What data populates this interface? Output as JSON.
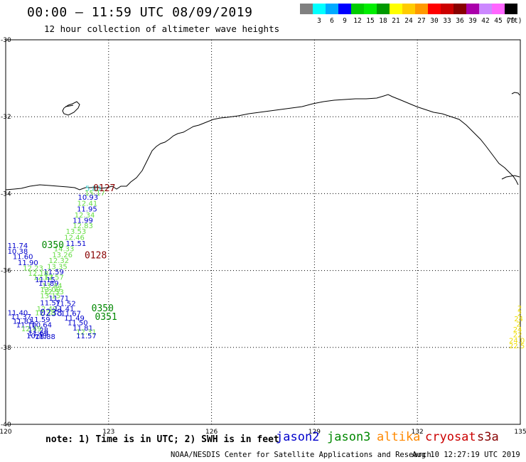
{
  "header": {
    "title": "00:00 — 11:59 UTC 08/09/2019",
    "subtitle": "12 hour collection of altimeter wave heights"
  },
  "legend": {
    "unit": "(ft)",
    "swatches": [
      {
        "color": "#808080",
        "label": ""
      },
      {
        "color": "#00ffff",
        "label": "3"
      },
      {
        "color": "#00aaff",
        "label": "6"
      },
      {
        "color": "#0000ff",
        "label": "9"
      },
      {
        "color": "#00cc00",
        "label": "12"
      },
      {
        "color": "#00ee00",
        "label": "15"
      },
      {
        "color": "#009900",
        "label": "18"
      },
      {
        "color": "#ffff00",
        "label": "21"
      },
      {
        "color": "#ffcc00",
        "label": "24"
      },
      {
        "color": "#ff9900",
        "label": "27"
      },
      {
        "color": "#ff0000",
        "label": "30"
      },
      {
        "color": "#cc0000",
        "label": "33"
      },
      {
        "color": "#880000",
        "label": "36"
      },
      {
        "color": "#aa00aa",
        "label": "39"
      },
      {
        "color": "#cc88ff",
        "label": "42"
      },
      {
        "color": "#ff66ff",
        "label": "45"
      },
      {
        "color": "#000000",
        "label": "70"
      }
    ]
  },
  "map": {
    "lon_ticks": [
      "120",
      "123",
      "126",
      "129",
      "132",
      "135"
    ],
    "lat_ticks": [
      "-30",
      "-32",
      "-34",
      "-36",
      "-38",
      "-40"
    ],
    "lon_range": [
      120,
      135
    ],
    "lat_range": [
      -30,
      -40
    ],
    "coast_color": "#000000",
    "grid": true
  },
  "observations": [
    {
      "lon": 122.55,
      "lat": -33.93,
      "text": "5.80",
      "color": "#33cccc"
    },
    {
      "lon": 122.6,
      "lat": -34.05,
      "text": "15.17",
      "color": "#66dd44"
    },
    {
      "lon": 122.4,
      "lat": -34.16,
      "text": "10.93",
      "color": "#0000cc"
    },
    {
      "lon": 122.38,
      "lat": -34.32,
      "text": "12.41",
      "color": "#66dd44"
    },
    {
      "lon": 122.37,
      "lat": -34.46,
      "text": "11.95",
      "color": "#0000cc"
    },
    {
      "lon": 122.3,
      "lat": -34.62,
      "text": "12.34",
      "color": "#66dd44"
    },
    {
      "lon": 122.25,
      "lat": -34.76,
      "text": "11.99",
      "color": "#0000cc"
    },
    {
      "lon": 122.25,
      "lat": -34.9,
      "text": "12.83",
      "color": "#66dd44"
    },
    {
      "lon": 122.05,
      "lat": -35.05,
      "text": "13.53",
      "color": "#66dd44"
    },
    {
      "lon": 122.0,
      "lat": -35.2,
      "text": "12.46",
      "color": "#66dd44"
    },
    {
      "lon": 122.05,
      "lat": -35.36,
      "text": "11.51",
      "color": "#0000cc"
    },
    {
      "lon": 121.7,
      "lat": -35.5,
      "text": "14.33",
      "color": "#66dd44"
    },
    {
      "lon": 121.65,
      "lat": -35.66,
      "text": "13.26",
      "color": "#66dd44"
    },
    {
      "lon": 121.55,
      "lat": -35.8,
      "text": "12.32",
      "color": "#66dd44"
    },
    {
      "lon": 121.5,
      "lat": -35.96,
      "text": "13.35",
      "color": "#66dd44"
    },
    {
      "lon": 121.4,
      "lat": -36.1,
      "text": "11.59",
      "color": "#0000cc"
    },
    {
      "lon": 120.35,
      "lat": -35.42,
      "text": "11.74",
      "color": "#0000cc"
    },
    {
      "lon": 120.35,
      "lat": -35.56,
      "text": "10.38",
      "color": "#0000cc"
    },
    {
      "lon": 120.5,
      "lat": -35.7,
      "text": "11.60",
      "color": "#0000cc"
    },
    {
      "lon": 120.65,
      "lat": -35.86,
      "text": "11.90",
      "color": "#0000cc"
    },
    {
      "lon": 120.8,
      "lat": -36.0,
      "text": "12.23",
      "color": "#66dd44"
    },
    {
      "lon": 120.95,
      "lat": -36.14,
      "text": "12.18",
      "color": "#66dd44"
    },
    {
      "lon": 121.1,
      "lat": -36.24,
      "text": "12.17",
      "color": "#66dd44"
    },
    {
      "lon": 121.4,
      "lat": -36.24,
      "text": "12.57",
      "color": "#66dd44"
    },
    {
      "lon": 121.15,
      "lat": -36.3,
      "text": "11.15",
      "color": "#0000cc"
    },
    {
      "lon": 121.25,
      "lat": -36.4,
      "text": "11.89",
      "color": "#0000cc"
    },
    {
      "lon": 121.35,
      "lat": -36.46,
      "text": "13.44",
      "color": "#66dd44"
    },
    {
      "lon": 121.3,
      "lat": -36.56,
      "text": "13.09",
      "color": "#66dd44"
    },
    {
      "lon": 121.4,
      "lat": -36.62,
      "text": "12.53",
      "color": "#66dd44"
    },
    {
      "lon": 121.3,
      "lat": -36.72,
      "text": "13.15",
      "color": "#66dd44"
    },
    {
      "lon": 121.55,
      "lat": -36.78,
      "text": "11.71",
      "color": "#0000cc"
    },
    {
      "lon": 121.3,
      "lat": -36.9,
      "text": "11.57",
      "color": "#0000cc"
    },
    {
      "lon": 121.75,
      "lat": -36.92,
      "text": "11.52",
      "color": "#0000cc"
    },
    {
      "lon": 121.2,
      "lat": -37.06,
      "text": "12.49",
      "color": "#66dd44"
    },
    {
      "lon": 121.7,
      "lat": -37.06,
      "text": "11.41",
      "color": "#0000cc"
    },
    {
      "lon": 121.15,
      "lat": -37.16,
      "text": "12.38",
      "color": "#66dd44"
    },
    {
      "lon": 121.9,
      "lat": -37.18,
      "text": "11.67",
      "color": "#0000cc"
    },
    {
      "lon": 120.35,
      "lat": -37.16,
      "text": "11.40",
      "color": "#0000cc"
    },
    {
      "lon": 120.45,
      "lat": -37.26,
      "text": "11.37",
      "color": "#0000cc"
    },
    {
      "lon": 121.0,
      "lat": -37.34,
      "text": "11.59",
      "color": "#0000cc"
    },
    {
      "lon": 122.0,
      "lat": -37.3,
      "text": "11.49",
      "color": "#0000cc"
    },
    {
      "lon": 120.5,
      "lat": -37.38,
      "text": "11.81",
      "color": "#0000cc"
    },
    {
      "lon": 122.1,
      "lat": -37.42,
      "text": "11.50",
      "color": "#0000cc"
    },
    {
      "lon": 120.6,
      "lat": -37.48,
      "text": "11.10",
      "color": "#0000cc"
    },
    {
      "lon": 121.05,
      "lat": -37.48,
      "text": "10.64",
      "color": "#0000cc"
    },
    {
      "lon": 122.25,
      "lat": -37.56,
      "text": "11.81",
      "color": "#0000cc"
    },
    {
      "lon": 120.75,
      "lat": -37.58,
      "text": "12.49",
      "color": "#66dd44"
    },
    {
      "lon": 120.95,
      "lat": -37.62,
      "text": "11.28",
      "color": "#0000cc"
    },
    {
      "lon": 122.35,
      "lat": -37.66,
      "text": "12.31",
      "color": "#66dd44"
    },
    {
      "lon": 120.95,
      "lat": -37.7,
      "text": "11.69",
      "color": "#0000cc"
    },
    {
      "lon": 120.9,
      "lat": -37.76,
      "text": "10.98",
      "color": "#0000cc"
    },
    {
      "lon": 121.15,
      "lat": -37.78,
      "text": "11.88",
      "color": "#0000cc"
    },
    {
      "lon": 122.35,
      "lat": -37.76,
      "text": "11.57",
      "color": "#0000cc"
    },
    {
      "lon": 134.98,
      "lat": -37.04,
      "text": "2",
      "color": "#eedd00"
    },
    {
      "lon": 134.98,
      "lat": -37.18,
      "text": "2",
      "color": "#eedd00"
    },
    {
      "lon": 134.95,
      "lat": -37.32,
      "text": "24",
      "color": "#eedd00"
    },
    {
      "lon": 134.95,
      "lat": -37.46,
      "text": "2",
      "color": "#eedd00"
    },
    {
      "lon": 134.92,
      "lat": -37.6,
      "text": "24",
      "color": "#eedd00"
    },
    {
      "lon": 134.92,
      "lat": -37.74,
      "text": "22",
      "color": "#eedd00"
    },
    {
      "lon": 134.9,
      "lat": -37.88,
      "text": "24.0",
      "color": "#eedd00"
    },
    {
      "lon": 134.9,
      "lat": -38.02,
      "text": "22.5",
      "color": "#eedd00"
    }
  ],
  "times": [
    {
      "lon": 122.55,
      "lat": -33.94,
      "text": "0127",
      "color": "#880000"
    },
    {
      "lon": 121.05,
      "lat": -35.42,
      "text": "0350",
      "color": "#008800"
    },
    {
      "lon": 122.3,
      "lat": -35.68,
      "text": "0128",
      "color": "#880000"
    },
    {
      "lon": 122.5,
      "lat": -37.06,
      "text": "0350",
      "color": "#008800"
    },
    {
      "lon": 122.6,
      "lat": -37.28,
      "text": "0351",
      "color": "#008800"
    },
    {
      "lon": 121.0,
      "lat": -37.18,
      "text": "0238",
      "color": "#0000cc"
    }
  ],
  "footer": {
    "note": "note: 1) Time is in UTC; 2) SWH is in feet",
    "satellites": [
      {
        "name": "jason2",
        "color": "#0000cc"
      },
      {
        "name": "jason3",
        "color": "#008800"
      },
      {
        "name": "altika",
        "color": "#ff8800"
      },
      {
        "name": "cryosat",
        "color": "#cc0000"
      },
      {
        "name": "s3a",
        "color": "#880000"
      }
    ],
    "credit": "NOAA/NESDIS Center for Satellite Applications and Research",
    "timestamp": "Aug 10 12:27:19 UTC 2019"
  }
}
